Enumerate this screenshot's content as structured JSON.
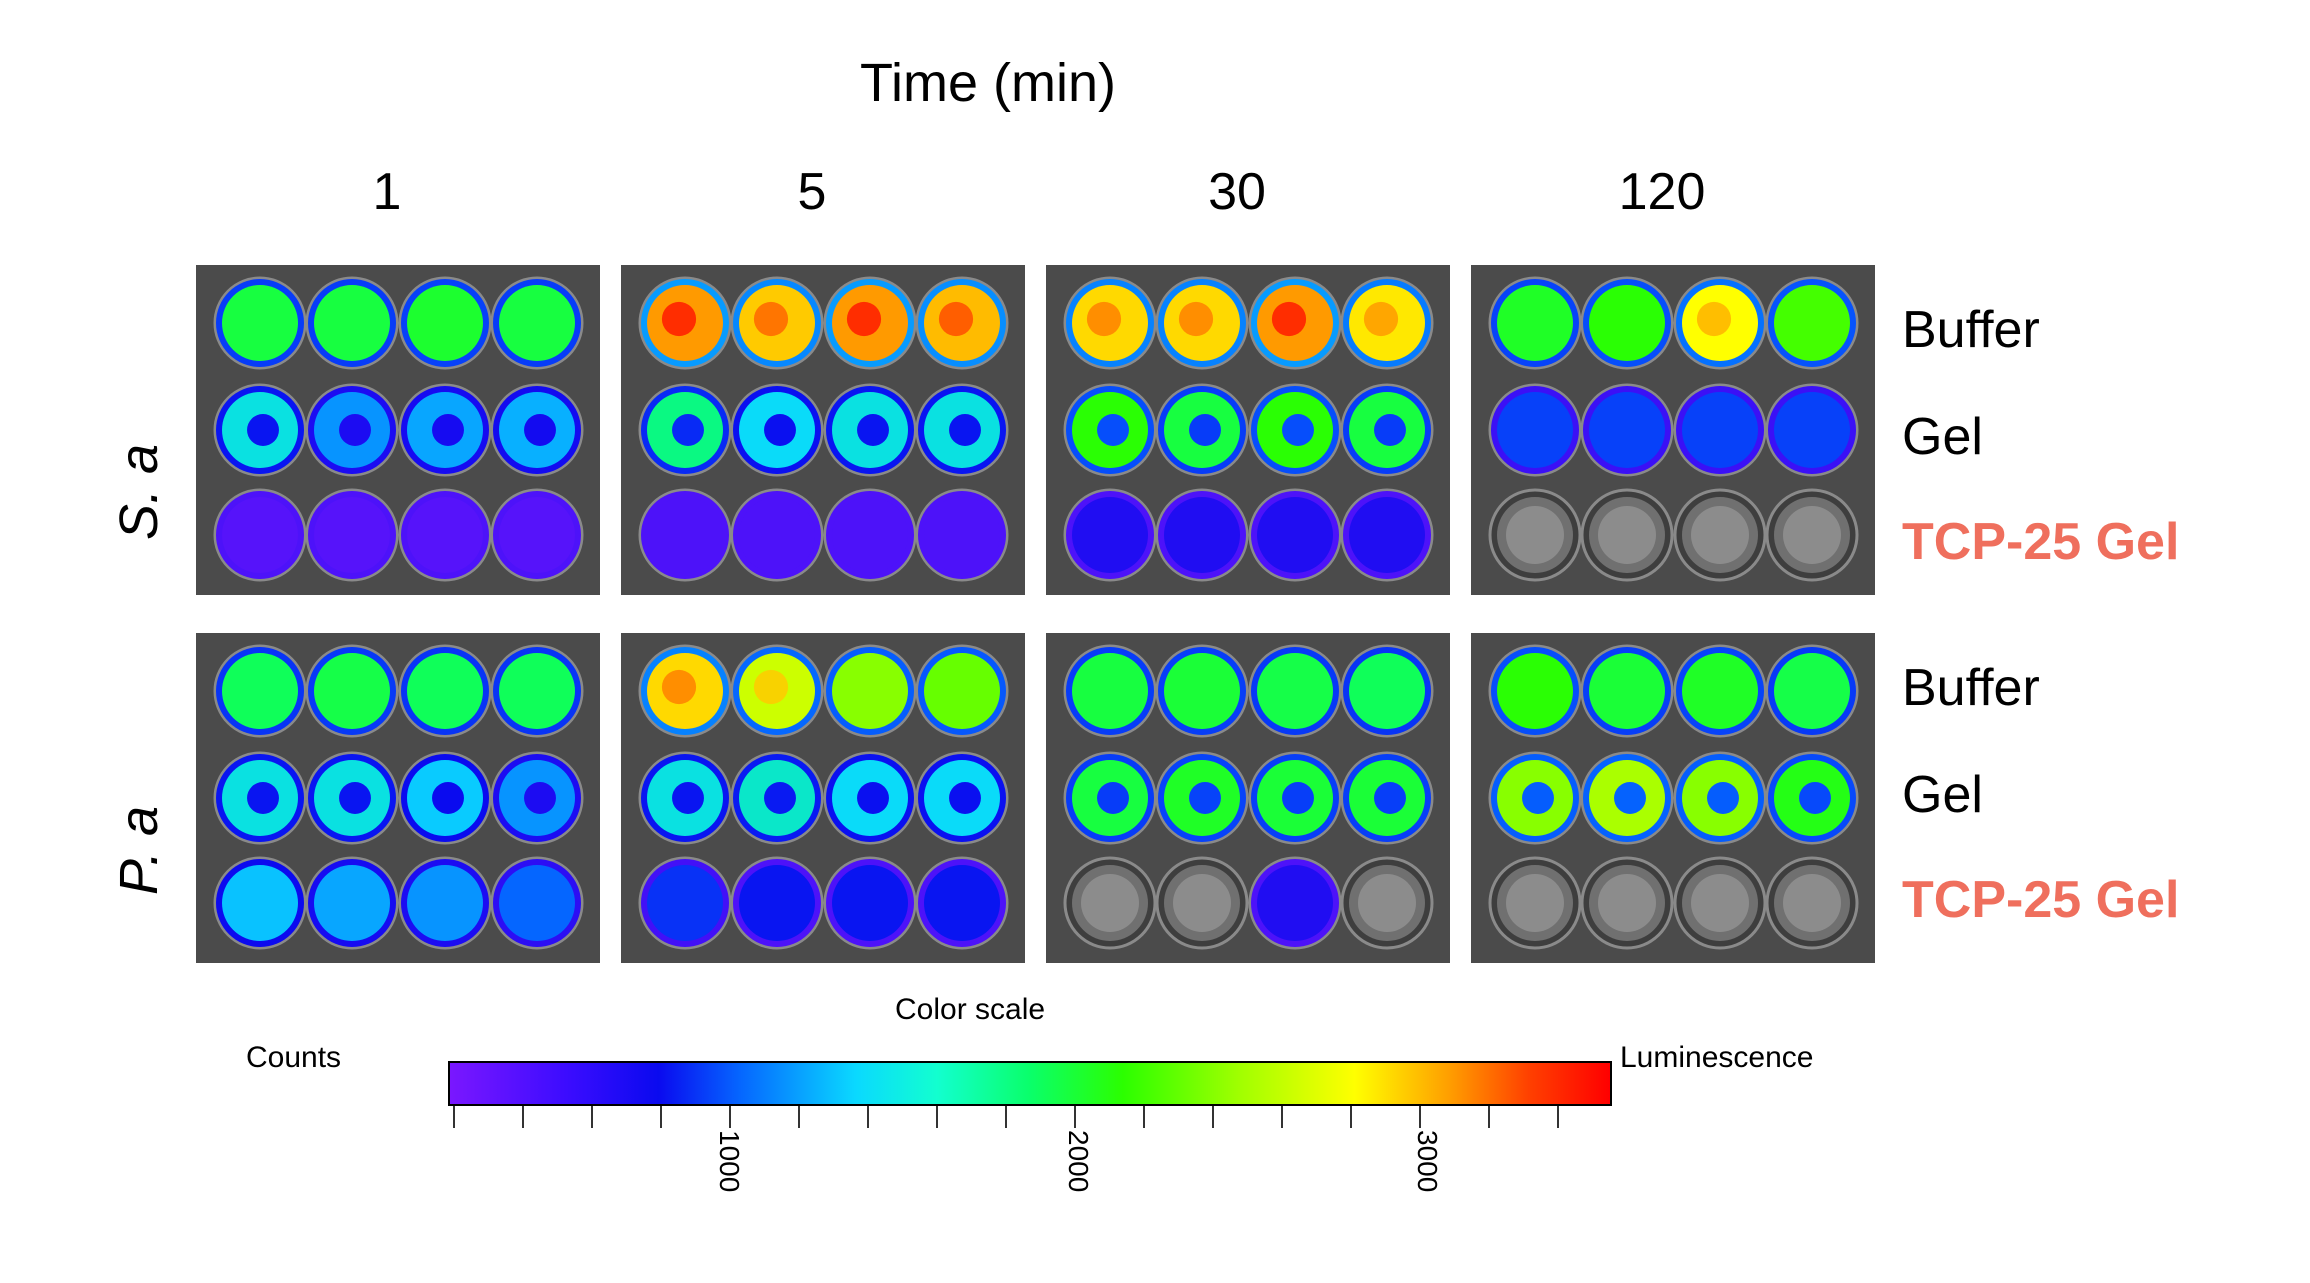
{
  "figure": {
    "x_axis_title": "Time (min)",
    "time_points": [
      "1",
      "5",
      "30",
      "120"
    ],
    "organisms": [
      "S. a",
      "P. a"
    ],
    "conditions": [
      {
        "label": "Buffer",
        "color": "#000000"
      },
      {
        "label": "Gel",
        "color": "#000000"
      },
      {
        "label": "TCP-25 Gel",
        "color": "#ef6f5d"
      }
    ],
    "wells_per_row": 4,
    "panel_levels": [
      [
        {
          "rows": [
            [
              0.55,
              0.55,
              0.57,
              0.55
            ],
            [
              0.4,
              0.3,
              0.32,
              0.33
            ],
            [
              0.04,
              0.04,
              0.04,
              0.04
            ]
          ]
        },
        {
          "rows": [
            [
              0.88,
              0.82,
              0.88,
              0.84
            ],
            [
              0.48,
              0.38,
              0.4,
              0.4
            ],
            [
              0.05,
              0.05,
              0.05,
              0.05
            ]
          ]
        },
        {
          "rows": [
            [
              0.8,
              0.8,
              0.88,
              0.78
            ],
            [
              0.62,
              0.55,
              0.62,
              0.55
            ],
            [
              0.1,
              0.1,
              0.1,
              0.1
            ]
          ]
        },
        {
          "rows": [
            [
              0.58,
              0.62,
              0.75,
              0.64
            ],
            [
              0.2,
              0.2,
              0.2,
              0.2
            ],
            [
              -1,
              -1,
              -1,
              -1
            ]
          ]
        }
      ],
      [
        {
          "rows": [
            [
              0.52,
              0.54,
              0.52,
              0.52
            ],
            [
              0.4,
              0.4,
              0.36,
              0.3
            ],
            [
              0.35,
              0.32,
              0.3,
              0.25
            ]
          ]
        },
        {
          "rows": [
            [
              0.8,
              0.72,
              0.68,
              0.66
            ],
            [
              0.4,
              0.42,
              0.38,
              0.38
            ],
            [
              0.18,
              0.14,
              0.14,
              0.14
            ]
          ]
        },
        {
          "rows": [
            [
              0.55,
              0.56,
              0.54,
              0.52
            ],
            [
              0.55,
              0.58,
              0.56,
              0.56
            ],
            [
              -1,
              -1,
              0.1,
              -1
            ]
          ]
        },
        {
          "rows": [
            [
              0.62,
              0.56,
              0.58,
              0.54
            ],
            [
              0.68,
              0.7,
              0.68,
              0.6
            ],
            [
              -1,
              -1,
              -1,
              -1
            ]
          ]
        }
      ]
    ]
  },
  "color_scale": {
    "title": "Color scale",
    "left_label": "Counts",
    "right_label": "Luminescence",
    "tick_labels": [
      "1000",
      "2000",
      "3000"
    ],
    "stops": [
      "#7a17ff",
      "#0a0aef",
      "#0566ff",
      "#0ad9ff",
      "#0aff6a",
      "#2bff00",
      "#ffff00",
      "#ffa000",
      "#ff0000"
    ]
  }
}
